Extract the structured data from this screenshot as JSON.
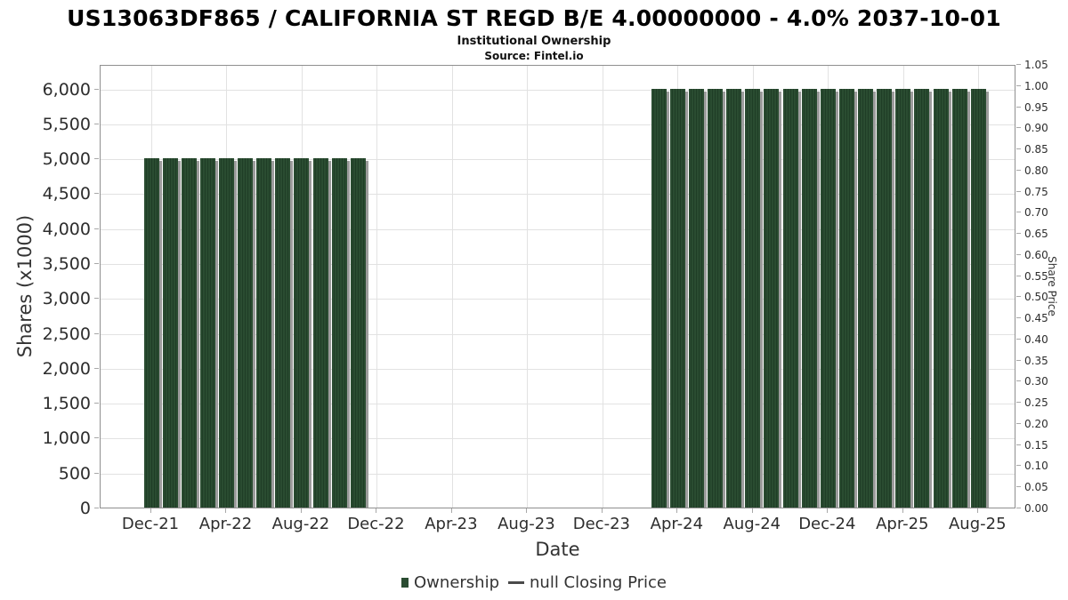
{
  "title": "US13063DF865 / CALIFORNIA ST REGD B/E 4.00000000 - 4.0% 2037-10-01",
  "subtitle": "Institutional Ownership",
  "source": "Source: Fintel.io",
  "chart_data": {
    "type": "bar",
    "title": "US13063DF865 / CALIFORNIA ST REGD B/E 4.00000000 - 4.0% 2037-10-01",
    "subtitle": "Institutional Ownership",
    "source": "Source: Fintel.io",
    "xlabel": "Date",
    "ylabel_left": "Shares (x1000)",
    "ylabel_right": "Share Price",
    "grid": true,
    "legend_position": "bottom-center",
    "left_axis": {
      "min": 0,
      "max": 6350,
      "tick_step": 500,
      "tick_labels": [
        "0",
        "500",
        "1,000",
        "1,500",
        "2,000",
        "2,500",
        "3,000",
        "3,500",
        "4,000",
        "4,500",
        "5,000",
        "5,500",
        "6,000"
      ]
    },
    "right_axis": {
      "min": 0.0,
      "max": 1.05,
      "tick_step": 0.05,
      "tick_labels": [
        "0.00",
        "0.05",
        "0.10",
        "0.15",
        "0.20",
        "0.25",
        "0.30",
        "0.35",
        "0.40",
        "0.45",
        "0.50",
        "0.55",
        "0.60",
        "0.65",
        "0.70",
        "0.75",
        "0.80",
        "0.85",
        "0.90",
        "0.95",
        "1.00",
        "1.05"
      ]
    },
    "x_ticks": [
      {
        "month_index": 0,
        "label": "Dec-21"
      },
      {
        "month_index": 4,
        "label": "Apr-22"
      },
      {
        "month_index": 8,
        "label": "Aug-22"
      },
      {
        "month_index": 12,
        "label": "Dec-22"
      },
      {
        "month_index": 16,
        "label": "Apr-23"
      },
      {
        "month_index": 20,
        "label": "Aug-23"
      },
      {
        "month_index": 24,
        "label": "Dec-23"
      },
      {
        "month_index": 28,
        "label": "Apr-24"
      },
      {
        "month_index": 32,
        "label": "Aug-24"
      },
      {
        "month_index": 36,
        "label": "Dec-24"
      },
      {
        "month_index": 40,
        "label": "Apr-25"
      },
      {
        "month_index": 44,
        "label": "Aug-25"
      }
    ],
    "series": [
      {
        "name": "Ownership",
        "unit": "shares x1000",
        "points": [
          {
            "month_index": 0,
            "label": "Dec-21",
            "value": 5000
          },
          {
            "month_index": 1,
            "label": "Jan-22",
            "value": 5000
          },
          {
            "month_index": 2,
            "label": "Feb-22",
            "value": 5000
          },
          {
            "month_index": 3,
            "label": "Mar-22",
            "value": 5000
          },
          {
            "month_index": 4,
            "label": "Apr-22",
            "value": 5000
          },
          {
            "month_index": 5,
            "label": "May-22",
            "value": 5000
          },
          {
            "month_index": 6,
            "label": "Jun-22",
            "value": 5000
          },
          {
            "month_index": 7,
            "label": "Jul-22",
            "value": 5000
          },
          {
            "month_index": 8,
            "label": "Aug-22",
            "value": 5000
          },
          {
            "month_index": 9,
            "label": "Sep-22",
            "value": 5000
          },
          {
            "month_index": 10,
            "label": "Oct-22",
            "value": 5000
          },
          {
            "month_index": 11,
            "label": "Nov-22",
            "value": 5000
          },
          {
            "month_index": 27,
            "label": "Mar-24",
            "value": 6000
          },
          {
            "month_index": 28,
            "label": "Apr-24",
            "value": 6000
          },
          {
            "month_index": 29,
            "label": "May-24",
            "value": 6000
          },
          {
            "month_index": 30,
            "label": "Jun-24",
            "value": 6000
          },
          {
            "month_index": 31,
            "label": "Jul-24",
            "value": 6000
          },
          {
            "month_index": 32,
            "label": "Aug-24",
            "value": 6000
          },
          {
            "month_index": 33,
            "label": "Sep-24",
            "value": 6000
          },
          {
            "month_index": 34,
            "label": "Oct-24",
            "value": 6000
          },
          {
            "month_index": 35,
            "label": "Nov-24",
            "value": 6000
          },
          {
            "month_index": 36,
            "label": "Dec-24",
            "value": 6000
          },
          {
            "month_index": 37,
            "label": "Jan-25",
            "value": 6000
          },
          {
            "month_index": 38,
            "label": "Feb-25",
            "value": 6000
          },
          {
            "month_index": 39,
            "label": "Mar-25",
            "value": 6000
          },
          {
            "month_index": 40,
            "label": "Apr-25",
            "value": 6000
          },
          {
            "month_index": 41,
            "label": "May-25",
            "value": 6000
          },
          {
            "month_index": 42,
            "label": "Jun-25",
            "value": 6000
          },
          {
            "month_index": 43,
            "label": "Jul-25",
            "value": 6000
          },
          {
            "month_index": 44,
            "label": "Aug-25",
            "value": 6000
          }
        ]
      },
      {
        "name": "null Closing Price",
        "unit": "share price",
        "points": []
      }
    ],
    "colors": {
      "bar": "#2a4c31",
      "bar_stripe": "#1f3d26",
      "bar_shadow": "#9c9c9c",
      "legend_line": "#4a4a4a"
    },
    "legend": [
      {
        "label": "Ownership",
        "marker": "square",
        "color": "#2a4c31"
      },
      {
        "label": "null Closing Price",
        "marker": "line",
        "color": "#4a4a4a"
      }
    ]
  }
}
